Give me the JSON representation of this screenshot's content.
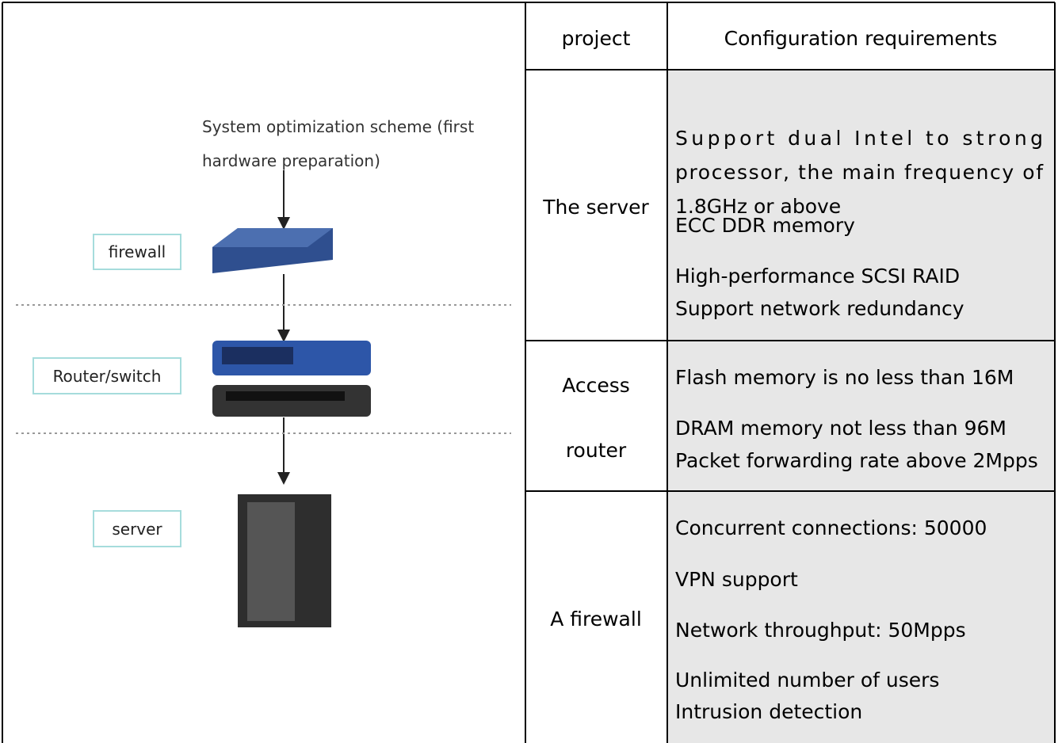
{
  "diagram": {
    "caption": [
      "System optimization scheme (first",
      "hardware preparation)"
    ],
    "labels": [
      "firewall",
      "Router/switch",
      "server"
    ]
  },
  "table": {
    "header": [
      "project",
      "Configuration requirements"
    ],
    "rows": [
      {
        "project": [
          "The server"
        ],
        "requirements": [
          "Support dual Intel to strong",
          "processor, the main frequency of",
          "1.8GHz or above",
          "ECC DDR memory",
          "High-performance SCSI RAID",
          "Support network redundancy"
        ]
      },
      {
        "project": [
          "Access",
          "router"
        ],
        "requirements": [
          "Flash memory is no less than 16M",
          "DRAM memory not less than 96M",
          "Packet forwarding rate above 2Mpps"
        ]
      },
      {
        "project": [
          "A firewall"
        ],
        "requirements": [
          "Concurrent connections: 50000",
          "VPN support",
          "Network throughput: 50Mpps",
          "Unlimited number of users",
          "Intrusion detection"
        ]
      }
    ]
  }
}
